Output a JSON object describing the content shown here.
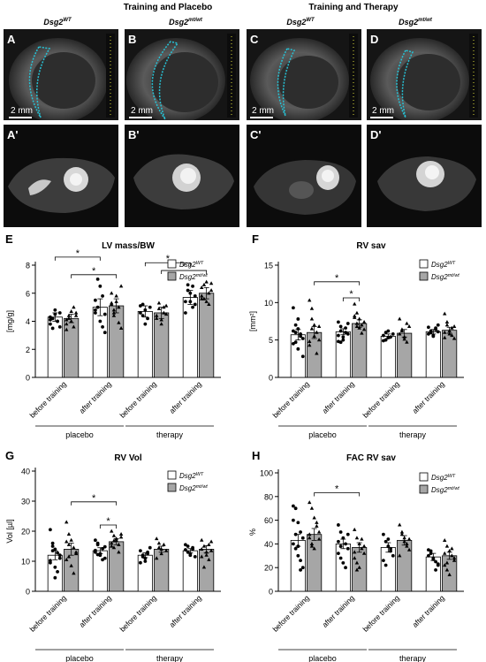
{
  "header": {
    "groups": [
      {
        "title": "Training and Placebo"
      },
      {
        "title": "Training and Therapy"
      }
    ],
    "genotypes": [
      "Dsg2",
      "Dsg2",
      "Dsg2",
      "Dsg2"
    ],
    "genotype_sups": [
      "WT",
      "mt/wt",
      "WT",
      "mt/wt"
    ]
  },
  "echo_panels": [
    {
      "letter": "A",
      "scale": "2 mm"
    },
    {
      "letter": "B",
      "scale": "2 mm"
    },
    {
      "letter": "C",
      "scale": "2 mm"
    },
    {
      "letter": "D",
      "scale": "2 mm"
    }
  ],
  "mri_panels": [
    {
      "letter": "A'"
    },
    {
      "letter": "B'"
    },
    {
      "letter": "C'"
    },
    {
      "letter": "D'"
    }
  ],
  "legend": {
    "wt": "Dsg2",
    "wt_sup": "WT",
    "mt": "Dsg2",
    "mt_sup": "mt/wt"
  },
  "colors": {
    "wt_bar": "#ffffff",
    "mt_bar": "#a6a6a6",
    "echo_trace": "#27c3d6"
  },
  "chart_data": [
    {
      "letter": "E",
      "type": "bar",
      "title": "LV mass/BW",
      "ylabel": "[mg/g]",
      "ylim": [
        0,
        8
      ],
      "yticks": [
        0,
        2,
        4,
        6,
        8
      ],
      "categories": [
        "before training",
        "after training",
        "before training",
        "after training"
      ],
      "groups": [
        "placebo",
        "therapy"
      ],
      "series": [
        {
          "name": "Dsg2 WT",
          "values": [
            4.3,
            5.0,
            4.7,
            5.7
          ],
          "errors": [
            0.3,
            0.6,
            0.4,
            0.5
          ],
          "points": [
            [
              4.3,
              3.5,
              4.8,
              4.0,
              4.6,
              3.8,
              4.2,
              4.5,
              4.0,
              3.6,
              4.1
            ],
            [
              4.8,
              7.0,
              6.5,
              3.6,
              4.5,
              5.5,
              5.0,
              4.0,
              5.8,
              3.2,
              4.6
            ],
            [
              4.6,
              5.2,
              3.8,
              4.2,
              5.0,
              5.1,
              4.4,
              4.8
            ],
            [
              5.4,
              6.6,
              6.0,
              5.0,
              5.8,
              4.6,
              6.2,
              5.4,
              6.5,
              5.2
            ]
          ]
        },
        {
          "name": "Dsg2 mt/wt",
          "values": [
            4.2,
            5.1,
            4.6,
            6.0
          ],
          "errors": [
            0.3,
            0.5,
            0.4,
            0.4
          ],
          "points": [
            [
              3.4,
              4.4,
              4.0,
              5.0,
              4.6,
              3.8,
              4.2,
              4.7,
              3.6,
              4.4,
              4.1
            ],
            [
              6.0,
              4.4,
              5.4,
              3.9,
              6.5,
              5.2,
              4.6,
              5.8,
              5.0,
              3.5,
              5.3,
              4.8
            ],
            [
              4.2,
              5.3,
              3.8,
              4.6,
              5.1,
              4.4,
              4.9,
              4.1,
              5.0,
              4.5
            ],
            [
              6.4,
              5.6,
              6.8,
              5.2,
              6.2,
              5.8,
              6.6,
              5.4,
              6.0,
              6.7,
              5.6
            ]
          ]
        }
      ],
      "significance": [
        {
          "from": [
            0,
            "wt"
          ],
          "to": [
            1,
            "wt"
          ],
          "label": "*"
        },
        {
          "from": [
            0,
            "mt"
          ],
          "to": [
            1,
            "mt"
          ],
          "label": "*"
        },
        {
          "from": [
            2,
            "wt"
          ],
          "to": [
            3,
            "wt"
          ],
          "label": "*"
        },
        {
          "from": [
            2,
            "mt"
          ],
          "to": [
            3,
            "mt"
          ],
          "label": "*"
        }
      ]
    },
    {
      "letter": "F",
      "type": "bar",
      "title": "RV sav",
      "ylabel": "[mm²]",
      "ylim": [
        0,
        15
      ],
      "yticks": [
        0,
        5,
        10,
        15
      ],
      "categories": [
        "before training",
        "after training",
        "before training",
        "after training"
      ],
      "groups": [
        "placebo",
        "therapy"
      ],
      "series": [
        {
          "name": "Dsg2 WT",
          "values": [
            5.7,
            6.1,
            5.5,
            6.1
          ],
          "errors": [
            0.7,
            0.4,
            0.3,
            0.3
          ],
          "points": [
            [
              9.3,
              7.0,
              6.5,
              5.8,
              5.2,
              4.5,
              6.0,
              3.8,
              5.5,
              2.8,
              6.2,
              4.7,
              7.8
            ],
            [
              7.4,
              6.2,
              5.0,
              6.6,
              5.8,
              4.8,
              6.8,
              5.4,
              6.0,
              7.2,
              5.6,
              4.7
            ],
            [
              5.6,
              5.0,
              6.2,
              5.4,
              5.8,
              4.9,
              6.0,
              5.3
            ],
            [
              6.7,
              6.0,
              5.6,
              6.4,
              7.0,
              5.8,
              6.2,
              5.5,
              6.6,
              6.1
            ]
          ]
        },
        {
          "name": "Dsg2 mt/wt",
          "values": [
            6.0,
            7.2,
            5.9,
            6.3
          ],
          "errors": [
            0.8,
            0.5,
            0.5,
            0.4
          ],
          "points": [
            [
              10.3,
              9.2,
              7.0,
              6.0,
              5.0,
              4.3,
              6.5,
              5.5,
              3.2,
              6.8,
              4.8,
              7.8
            ],
            [
              9.8,
              8.6,
              7.8,
              7.0,
              6.4,
              8.2,
              7.2,
              6.6,
              5.9,
              7.4,
              8.0,
              6.8
            ],
            [
              7.8,
              6.2,
              5.4,
              4.7,
              6.8,
              5.8,
              6.4,
              5.1,
              7.2
            ],
            [
              8.5,
              7.0,
              5.8,
              6.6,
              5.2,
              6.0,
              7.4,
              6.2,
              5.6,
              6.8,
              5.3
            ]
          ]
        }
      ],
      "significance": [
        {
          "from": [
            0,
            "mt"
          ],
          "to": [
            1,
            "mt"
          ],
          "label": "*"
        },
        {
          "from": [
            1,
            "wt"
          ],
          "to": [
            1,
            "mt"
          ],
          "label": "*"
        }
      ]
    },
    {
      "letter": "G",
      "type": "bar",
      "title": "RV Vol",
      "ylabel": "Vol [µl]",
      "ylim": [
        0,
        40
      ],
      "yticks": [
        0,
        10,
        20,
        30,
        40
      ],
      "categories": [
        "before training",
        "after training",
        "before training",
        "after training"
      ],
      "groups": [
        "placebo",
        "therapy"
      ],
      "series": [
        {
          "name": "Dsg2 WT",
          "values": [
            12.0,
            13.5,
            12.0,
            13.5
          ],
          "errors": [
            1.5,
            1.0,
            0.8,
            0.7
          ],
          "points": [
            [
              20.5,
              16.0,
              14.0,
              12.8,
              11.0,
              9.5,
              13.5,
              8.0,
              6.5,
              12.0,
              10.2,
              15.0,
              4.5
            ],
            [
              17.0,
              15.5,
              12.0,
              14.2,
              11.0,
              13.0,
              16.0,
              12.5,
              10.5,
              14.8,
              13.6,
              12.2
            ],
            [
              13.5,
              11.5,
              10.0,
              12.5,
              14.5,
              9.5,
              12.0,
              11.0,
              13.0
            ],
            [
              15.5,
              13.0,
              12.0,
              14.5,
              11.5,
              13.8,
              15.0,
              12.5,
              14.0
            ]
          ]
        },
        {
          "name": "Dsg2 mt/wt",
          "values": [
            14.0,
            16.5,
            14.0,
            14.0
          ],
          "errors": [
            2.0,
            1.0,
            1.0,
            1.2
          ],
          "points": [
            [
              23.0,
              19.0,
              17.0,
              14.5,
              12.5,
              10.5,
              15.5,
              8.5,
              6.0,
              13.0,
              16.5,
              11.5
            ],
            [
              20.0,
              18.5,
              17.0,
              15.5,
              19.0,
              16.0,
              14.5,
              17.5,
              13.0,
              18.0,
              15.0,
              16.8
            ],
            [
              17.5,
              14.5,
              12.5,
              15.5,
              13.5,
              11.0,
              16.0,
              14.0
            ],
            [
              17.0,
              15.0,
              13.0,
              10.5,
              16.5,
              14.0,
              8.0,
              12.0,
              15.5,
              13.5,
              11.5
            ]
          ]
        }
      ],
      "significance": [
        {
          "from": [
            0,
            "mt"
          ],
          "to": [
            1,
            "mt"
          ],
          "label": "*"
        },
        {
          "from": [
            1,
            "wt"
          ],
          "to": [
            1,
            "mt"
          ],
          "label": "*"
        }
      ]
    },
    {
      "letter": "H",
      "type": "bar",
      "title": "FAC RV sav",
      "ylabel": "%",
      "ylim": [
        0,
        100
      ],
      "yticks": [
        0,
        20,
        40,
        60,
        80,
        100
      ],
      "categories": [
        "before training",
        "after training",
        "before training",
        "after training"
      ],
      "groups": [
        "placebo",
        "therapy"
      ],
      "series": [
        {
          "name": "Dsg2 WT",
          "values": [
            43,
            40,
            37,
            29
          ],
          "errors": [
            5,
            4,
            4,
            3
          ],
          "points": [
            [
              72,
              70,
              58,
              50,
              45,
              40,
              36,
              30,
              26,
              20,
              60,
              48,
              38,
              18
            ],
            [
              56,
              50,
              45,
              40,
              36,
              32,
              28,
              24,
              20,
              48,
              42,
              38
            ],
            [
              48,
              42,
              38,
              34,
              30,
              26,
              22,
              44,
              36
            ],
            [
              35,
              32,
              28,
              25,
              22,
              30,
              34,
              27,
              18,
              23
            ]
          ]
        },
        {
          "name": "Dsg2 mt/wt",
          "values": [
            48,
            37,
            43,
            30
          ],
          "errors": [
            5,
            4,
            4,
            3
          ],
          "points": [
            [
              75,
              70,
              62,
              55,
              50,
              45,
              40,
              36,
              58,
              44,
              48,
              38
            ],
            [
              52,
              45,
              40,
              36,
              32,
              28,
              24,
              20,
              44,
              38,
              33,
              18
            ],
            [
              56,
              50,
              45,
              40,
              35,
              30,
              48,
              42,
              38,
              44
            ],
            [
              43,
              38,
              34,
              30,
              26,
              22,
              18,
              14,
              36,
              28,
              32,
              24
            ]
          ]
        }
      ],
      "significance": [
        {
          "from": [
            0,
            "mt"
          ],
          "to": [
            1,
            "mt"
          ],
          "label": "*"
        }
      ]
    }
  ]
}
